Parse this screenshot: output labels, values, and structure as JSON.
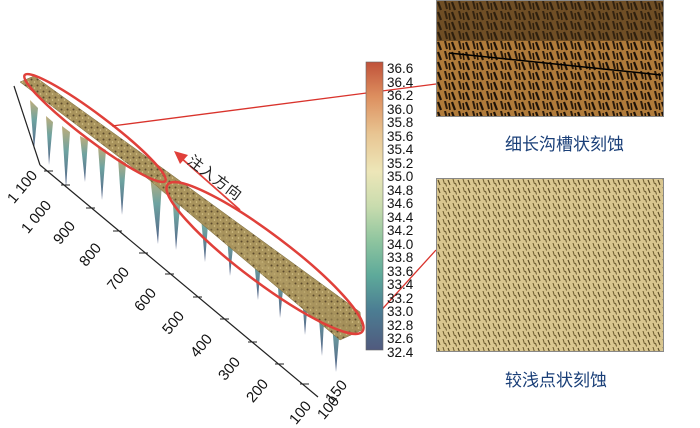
{
  "direction_label": "注入方向",
  "colorbar": {
    "ticks": [
      "36.6",
      "36.4",
      "36.2",
      "36.0",
      "35.8",
      "35.6",
      "35.4",
      "35.2",
      "35.0",
      "34.8",
      "34.6",
      "34.4",
      "34.2",
      "34.0",
      "33.8",
      "33.6",
      "33.4",
      "33.2",
      "33.0",
      "32.8",
      "32.6",
      "32.4"
    ],
    "colors": [
      "#c0523a",
      "#dd8f5f",
      "#e8c592",
      "#ede6b8",
      "#c9dcae",
      "#8fc59f",
      "#5eaa9a",
      "#4a8a96",
      "#4c6e8f",
      "#505a7e"
    ]
  },
  "axis": {
    "long_ticks": [
      "1 100",
      "1 000",
      "900",
      "800",
      "700",
      "600",
      "500",
      "400",
      "300",
      "200",
      "100"
    ],
    "short_ticks": [
      "150",
      "100"
    ]
  },
  "panels": {
    "top_caption": "细长沟槽状刻蚀",
    "bottom_caption": "较浅点状刻蚀"
  }
}
